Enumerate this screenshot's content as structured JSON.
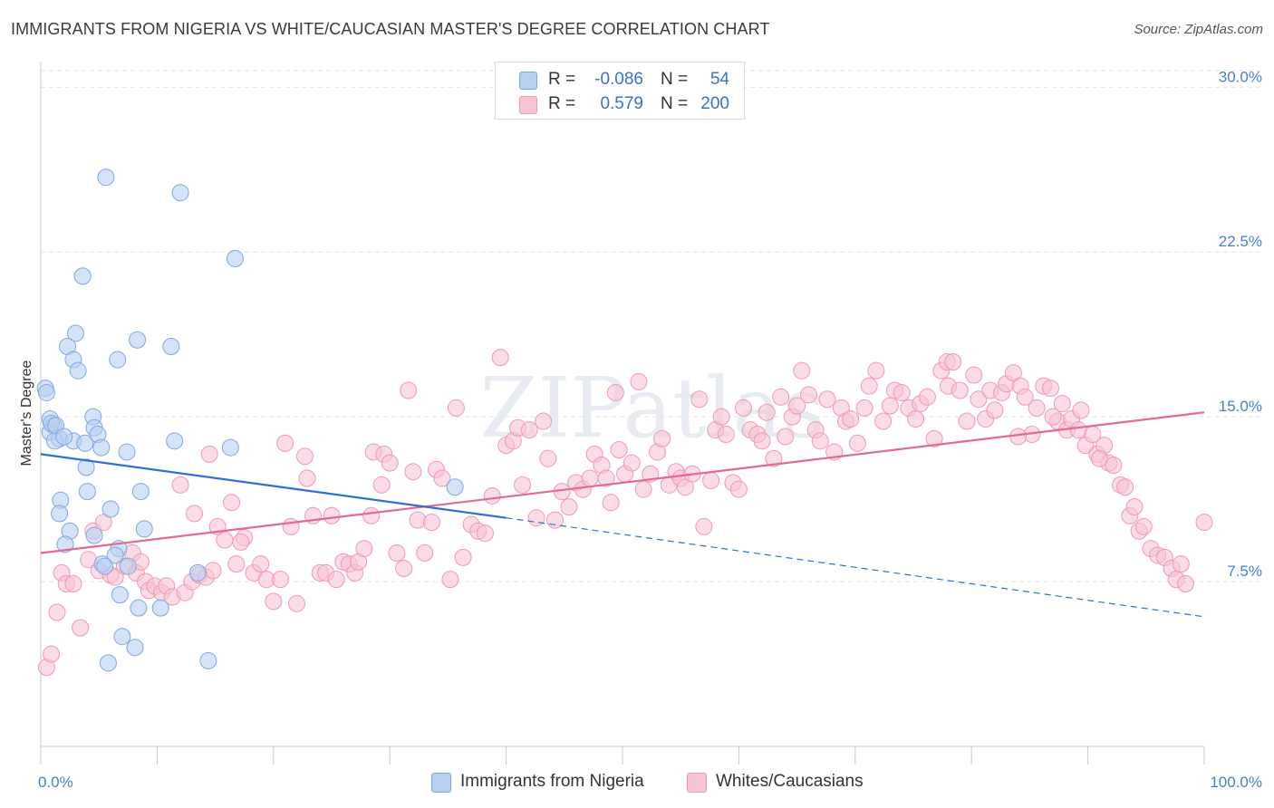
{
  "title": "IMMIGRANTS FROM NIGERIA VS WHITE/CAUCASIAN MASTER'S DEGREE CORRELATION CHART",
  "source": "Source: ZipAtlas.com",
  "legend": {
    "rows": [
      {
        "r_label": "R =",
        "r_value": "-0.086",
        "n_label": "N =",
        "n_value": "54"
      },
      {
        "r_label": "R =",
        "r_value": "0.579",
        "n_label": "N =",
        "n_value": "200"
      }
    ]
  },
  "chart_data": {
    "type": "scatter",
    "title": "IMMIGRANTS FROM NIGERIA VS WHITE/CAUCASIAN MASTER'S DEGREE CORRELATION CHART",
    "xlabel": "",
    "ylabel": "Master's Degree",
    "xlim": [
      0,
      100
    ],
    "ylim": [
      0,
      31
    ],
    "x_tick_labels": [
      "0.0%",
      "100.0%"
    ],
    "y_ticks": [
      7.5,
      15.0,
      22.5,
      30.0
    ],
    "y_tick_labels": [
      "7.5%",
      "15.0%",
      "22.5%",
      "30.0%"
    ],
    "grid": true,
    "legend_position": "bottom-center",
    "watermark": "ZIPatlas",
    "colors": {
      "nigeria_fill": "#b7d0f2",
      "nigeria_stroke": "#7fa8e0",
      "nigeria_line": "#2e6fd4",
      "white_fill": "#f8c3d3",
      "white_stroke": "#ee9ab4",
      "white_line": "#e26a93",
      "tick_text": "#4a7fcf",
      "grid": "#e3e3e3"
    },
    "series": [
      {
        "name": "Immigrants from Nigeria",
        "trend": {
          "x0": 0,
          "y0": 13.3,
          "x1": 40,
          "y1": 10.4,
          "x_dash_end": 100,
          "y_dash_end": 5.9
        },
        "points": [
          [
            5.6,
            25.9
          ],
          [
            12.0,
            25.2
          ],
          [
            16.7,
            22.2
          ],
          [
            3.6,
            21.4
          ],
          [
            3.0,
            18.8
          ],
          [
            2.3,
            18.2
          ],
          [
            8.3,
            18.5
          ],
          [
            11.2,
            18.2
          ],
          [
            2.8,
            17.6
          ],
          [
            6.6,
            17.6
          ],
          [
            3.2,
            17.1
          ],
          [
            0.4,
            16.3
          ],
          [
            0.5,
            16.1
          ],
          [
            0.8,
            14.9
          ],
          [
            1.1,
            14.6
          ],
          [
            4.5,
            15.0
          ],
          [
            4.6,
            14.5
          ],
          [
            0.8,
            14.3
          ],
          [
            1.6,
            14.0
          ],
          [
            1.2,
            13.9
          ],
          [
            2.8,
            13.9
          ],
          [
            3.8,
            13.8
          ],
          [
            4.9,
            14.2
          ],
          [
            5.2,
            13.6
          ],
          [
            7.4,
            13.4
          ],
          [
            11.5,
            13.9
          ],
          [
            16.3,
            13.6
          ],
          [
            3.9,
            12.7
          ],
          [
            4.0,
            11.6
          ],
          [
            8.6,
            11.6
          ],
          [
            1.7,
            11.2
          ],
          [
            1.6,
            10.6
          ],
          [
            6.0,
            10.8
          ],
          [
            8.9,
            9.9
          ],
          [
            2.5,
            9.8
          ],
          [
            4.6,
            9.6
          ],
          [
            2.1,
            9.2
          ],
          [
            6.7,
            9.0
          ],
          [
            6.4,
            8.7
          ],
          [
            5.3,
            8.3
          ],
          [
            7.5,
            8.2
          ],
          [
            13.5,
            7.9
          ],
          [
            6.8,
            6.9
          ],
          [
            8.4,
            6.3
          ],
          [
            10.3,
            6.3
          ],
          [
            7.0,
            5.0
          ],
          [
            8.1,
            4.5
          ],
          [
            5.8,
            3.8
          ],
          [
            14.4,
            3.9
          ],
          [
            35.6,
            11.8
          ],
          [
            0.9,
            14.7
          ],
          [
            1.3,
            14.6
          ],
          [
            2.0,
            14.1
          ],
          [
            5.5,
            8.2
          ]
        ]
      },
      {
        "name": "Whites/Caucasians",
        "trend": {
          "x0": 0,
          "y0": 8.8,
          "x1": 100,
          "y1": 15.2
        },
        "points": [
          [
            0.5,
            3.6
          ],
          [
            0.9,
            4.2
          ],
          [
            1.4,
            6.1
          ],
          [
            1.8,
            7.9
          ],
          [
            2.2,
            7.4
          ],
          [
            2.8,
            7.4
          ],
          [
            3.4,
            5.4
          ],
          [
            4.1,
            8.5
          ],
          [
            4.5,
            9.8
          ],
          [
            5.0,
            8.0
          ],
          [
            5.4,
            10.2
          ],
          [
            6.0,
            7.8
          ],
          [
            6.4,
            7.7
          ],
          [
            7.2,
            8.2
          ],
          [
            7.9,
            8.8
          ],
          [
            8.2,
            7.9
          ],
          [
            8.6,
            8.4
          ],
          [
            9.0,
            7.5
          ],
          [
            9.3,
            7.1
          ],
          [
            9.8,
            7.3
          ],
          [
            10.4,
            7.0
          ],
          [
            10.8,
            7.3
          ],
          [
            11.3,
            6.8
          ],
          [
            12.0,
            11.9
          ],
          [
            12.4,
            7.0
          ],
          [
            13.0,
            7.5
          ],
          [
            13.2,
            10.6
          ],
          [
            13.6,
            7.8
          ],
          [
            14.2,
            7.7
          ],
          [
            14.8,
            8.0
          ],
          [
            14.5,
            13.3
          ],
          [
            15.2,
            10.0
          ],
          [
            15.8,
            9.4
          ],
          [
            16.4,
            11.1
          ],
          [
            16.8,
            8.3
          ],
          [
            17.5,
            9.5
          ],
          [
            17.2,
            9.3
          ],
          [
            18.3,
            7.9
          ],
          [
            18.9,
            8.3
          ],
          [
            19.4,
            7.6
          ],
          [
            20.0,
            6.6
          ],
          [
            20.6,
            7.6
          ],
          [
            21.0,
            13.8
          ],
          [
            21.5,
            10.0
          ],
          [
            22.0,
            6.5
          ],
          [
            22.7,
            13.2
          ],
          [
            22.9,
            12.2
          ],
          [
            23.4,
            10.5
          ],
          [
            24.0,
            7.9
          ],
          [
            24.5,
            7.9
          ],
          [
            25.0,
            10.5
          ],
          [
            25.4,
            7.6
          ],
          [
            26.0,
            8.4
          ],
          [
            26.5,
            8.3
          ],
          [
            27.0,
            7.9
          ],
          [
            27.3,
            8.4
          ],
          [
            27.8,
            9.0
          ],
          [
            28.4,
            10.5
          ],
          [
            28.6,
            13.4
          ],
          [
            29.3,
            11.9
          ],
          [
            29.5,
            13.3
          ],
          [
            30.0,
            12.9
          ],
          [
            30.6,
            8.8
          ],
          [
            31.2,
            8.1
          ],
          [
            31.6,
            16.2
          ],
          [
            32.0,
            12.5
          ],
          [
            32.4,
            10.3
          ],
          [
            33.0,
            8.8
          ],
          [
            33.6,
            10.2
          ],
          [
            34.0,
            12.6
          ],
          [
            34.5,
            12.2
          ],
          [
            35.2,
            7.6
          ],
          [
            35.7,
            15.4
          ],
          [
            36.3,
            8.6
          ],
          [
            37.0,
            10.1
          ],
          [
            37.6,
            9.8
          ],
          [
            38.2,
            9.7
          ],
          [
            38.8,
            11.4
          ],
          [
            39.5,
            17.7
          ],
          [
            40.0,
            13.7
          ],
          [
            40.6,
            13.9
          ],
          [
            41.0,
            14.5
          ],
          [
            41.4,
            11.9
          ],
          [
            42.0,
            14.4
          ],
          [
            42.6,
            10.4
          ],
          [
            43.2,
            14.8
          ],
          [
            43.6,
            13.1
          ],
          [
            44.2,
            10.3
          ],
          [
            44.8,
            11.6
          ],
          [
            45.4,
            10.9
          ],
          [
            46.0,
            12.0
          ],
          [
            46.6,
            11.7
          ],
          [
            47.2,
            12.2
          ],
          [
            47.6,
            13.3
          ],
          [
            48.2,
            12.8
          ],
          [
            48.6,
            12.2
          ],
          [
            49.4,
            16.1
          ],
          [
            49.0,
            11.1
          ],
          [
            49.7,
            13.5
          ],
          [
            50.2,
            12.4
          ],
          [
            50.8,
            12.9
          ],
          [
            51.4,
            16.6
          ],
          [
            51.8,
            11.7
          ],
          [
            52.4,
            12.4
          ],
          [
            53.0,
            13.4
          ],
          [
            53.4,
            14.0
          ],
          [
            54.0,
            11.9
          ],
          [
            54.6,
            12.5
          ],
          [
            55.0,
            12.2
          ],
          [
            55.4,
            11.8
          ],
          [
            56.0,
            12.4
          ],
          [
            56.6,
            15.8
          ],
          [
            57.0,
            10.0
          ],
          [
            57.6,
            12.1
          ],
          [
            58.0,
            14.4
          ],
          [
            58.5,
            15.0
          ],
          [
            58.9,
            14.2
          ],
          [
            59.5,
            12.0
          ],
          [
            60.0,
            11.7
          ],
          [
            60.4,
            15.4
          ],
          [
            61.0,
            14.4
          ],
          [
            61.6,
            14.2
          ],
          [
            62.0,
            13.9
          ],
          [
            62.4,
            15.2
          ],
          [
            63.0,
            13.1
          ],
          [
            63.6,
            15.9
          ],
          [
            64.0,
            14.1
          ],
          [
            64.6,
            15.0
          ],
          [
            65.0,
            15.5
          ],
          [
            65.4,
            17.1
          ],
          [
            66.0,
            16.0
          ],
          [
            66.6,
            14.4
          ],
          [
            67.0,
            13.9
          ],
          [
            67.6,
            15.8
          ],
          [
            68.2,
            13.4
          ],
          [
            68.8,
            15.4
          ],
          [
            69.2,
            14.8
          ],
          [
            69.6,
            14.9
          ],
          [
            70.2,
            13.8
          ],
          [
            70.8,
            15.4
          ],
          [
            71.2,
            16.4
          ],
          [
            71.8,
            17.1
          ],
          [
            72.4,
            14.8
          ],
          [
            73.0,
            15.5
          ],
          [
            73.4,
            16.2
          ],
          [
            74.0,
            16.1
          ],
          [
            74.6,
            15.4
          ],
          [
            75.2,
            14.9
          ],
          [
            75.6,
            15.6
          ],
          [
            76.2,
            15.9
          ],
          [
            76.8,
            14.0
          ],
          [
            77.4,
            17.1
          ],
          [
            77.9,
            17.5
          ],
          [
            78.4,
            17.5
          ],
          [
            78.0,
            16.4
          ],
          [
            79.0,
            16.2
          ],
          [
            79.6,
            14.8
          ],
          [
            80.2,
            16.9
          ],
          [
            80.6,
            15.8
          ],
          [
            81.2,
            14.9
          ],
          [
            81.6,
            16.2
          ],
          [
            82.0,
            15.3
          ],
          [
            82.6,
            16.1
          ],
          [
            83.0,
            16.5
          ],
          [
            83.6,
            17.0
          ],
          [
            84.2,
            16.4
          ],
          [
            84.6,
            15.9
          ],
          [
            85.2,
            14.2
          ],
          [
            85.6,
            15.4
          ],
          [
            86.2,
            16.4
          ],
          [
            86.8,
            16.3
          ],
          [
            87.4,
            14.8
          ],
          [
            87.8,
            15.6
          ],
          [
            88.2,
            14.4
          ],
          [
            88.6,
            14.9
          ],
          [
            89.2,
            14.4
          ],
          [
            89.8,
            13.7
          ],
          [
            90.4,
            14.2
          ],
          [
            90.8,
            13.3
          ],
          [
            91.4,
            13.7
          ],
          [
            91.8,
            12.9
          ],
          [
            92.2,
            12.8
          ],
          [
            92.8,
            11.9
          ],
          [
            93.2,
            11.8
          ],
          [
            93.6,
            10.5
          ],
          [
            94.0,
            10.9
          ],
          [
            94.4,
            9.8
          ],
          [
            94.8,
            10.0
          ],
          [
            95.4,
            9.0
          ],
          [
            96.0,
            8.7
          ],
          [
            96.6,
            8.6
          ],
          [
            97.2,
            8.1
          ],
          [
            97.6,
            7.6
          ],
          [
            98.4,
            7.4
          ],
          [
            98.0,
            8.3
          ],
          [
            100.0,
            10.2
          ],
          [
            91.0,
            13.1
          ],
          [
            89.4,
            15.3
          ],
          [
            87.0,
            15.0
          ],
          [
            84.0,
            14.1
          ]
        ]
      }
    ]
  }
}
